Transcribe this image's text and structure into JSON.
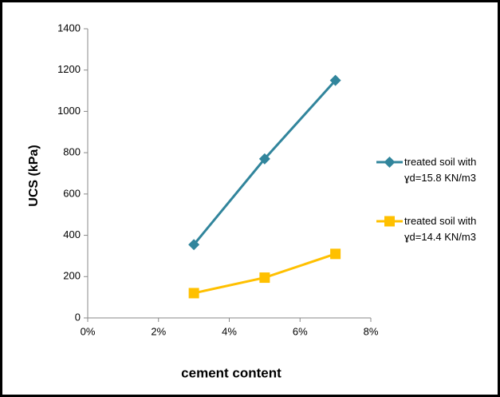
{
  "chart_data": {
    "type": "line",
    "x_label": "cement content",
    "y_label": "UCS (kPa)",
    "x": [
      3,
      5,
      7
    ],
    "series": [
      {
        "name": "treated soil with ɣd=15.8 KN/m3",
        "color": "#31859c",
        "marker": "diamond",
        "values": [
          355,
          770,
          1150
        ]
      },
      {
        "name": "treated soil with ɣd=14.4 KN/m3",
        "color": "#ffc000",
        "marker": "square",
        "values": [
          120,
          195,
          310
        ]
      }
    ],
    "xlim": [
      0,
      8
    ],
    "xticks": [
      {
        "value": 0,
        "label": "0%"
      },
      {
        "value": 2,
        "label": "2%"
      },
      {
        "value": 4,
        "label": "4%"
      },
      {
        "value": 6,
        "label": "6%"
      },
      {
        "value": 8,
        "label": "8%"
      }
    ],
    "ylim": [
      0,
      1400
    ],
    "yticks": [
      0,
      200,
      400,
      600,
      800,
      1000,
      1200,
      1400
    ],
    "grid": false,
    "legend": "right"
  }
}
